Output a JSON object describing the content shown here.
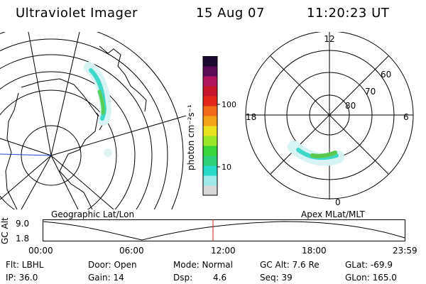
{
  "header": {
    "instrument": "Ultraviolet Imager",
    "date": "15 Aug 07",
    "time": "11:20:23 UT"
  },
  "colorbar": {
    "unit_label": "photon cm⁻²s⁻¹",
    "ticks": [
      "100",
      "10"
    ],
    "colors": [
      "#d9d9d9",
      "#9fe8e8",
      "#27d9c8",
      "#2fcf7a",
      "#38d43a",
      "#9be82a",
      "#e8e11f",
      "#f3a21a",
      "#f06a17",
      "#e3261a",
      "#c7142b",
      "#b0145a",
      "#5a0b55",
      "#1c0a2e"
    ]
  },
  "geo_panel": {
    "label": "Geographic Lat/Lon"
  },
  "polar_panel": {
    "label": "Apex MLat/MLT",
    "mlt_labels": {
      "top": "12",
      "right": "6",
      "bottom": "0",
      "left": "18"
    },
    "lat_labels": [
      "60",
      "70",
      "80"
    ]
  },
  "altitude_plot": {
    "ylabel": "GC Alt",
    "y_ticks": [
      "9.0",
      "1.8"
    ],
    "x_ticks": [
      "00:00",
      "06:00",
      "12:00",
      "18:00",
      "23:59"
    ],
    "marker_color": "#cc2222"
  },
  "info": {
    "flt": "Flt: LBHL",
    "door": "Door: Open",
    "mode": "Mode: Normal",
    "gc_alt": "GC Alt: 7.6 Re",
    "glat": "GLat: -69.9",
    "ip": "IP: 36.0",
    "gain": "Gain: 14",
    "dsp_label": "Dsp:",
    "dsp_value": "4.6",
    "seq": "Seq: 39",
    "glon": "GLon: 165.0"
  }
}
